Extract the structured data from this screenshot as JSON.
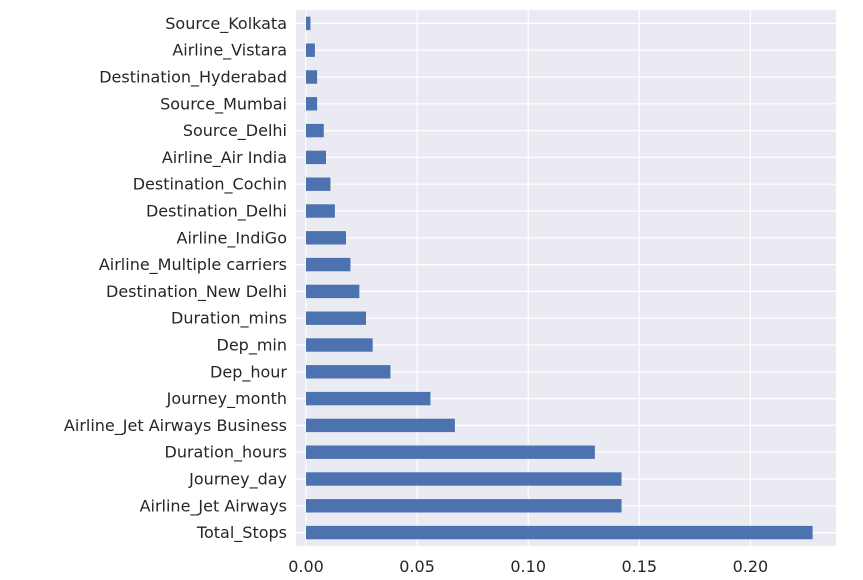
{
  "chart_data": {
    "type": "bar",
    "orientation": "horizontal",
    "categories": [
      "Total_Stops",
      "Airline_Jet Airways",
      "Journey_day",
      "Duration_hours",
      "Airline_Jet Airways Business",
      "Journey_month",
      "Dep_hour",
      "Dep_min",
      "Duration_mins",
      "Destination_New Delhi",
      "Airline_Multiple carriers",
      "Airline_IndiGo",
      "Destination_Delhi",
      "Destination_Cochin",
      "Airline_Air India",
      "Source_Delhi",
      "Source_Mumbai",
      "Destination_Hyderabad",
      "Airline_Vistara",
      "Source_Kolkata"
    ],
    "values": [
      0.228,
      0.142,
      0.142,
      0.13,
      0.067,
      0.056,
      0.038,
      0.03,
      0.027,
      0.024,
      0.02,
      0.018,
      0.013,
      0.011,
      0.009,
      0.008,
      0.005,
      0.005,
      0.004,
      0.002
    ],
    "xticks": [
      "0.00",
      "0.05",
      "0.10",
      "0.15",
      "0.20"
    ],
    "xtick_values": [
      0,
      0.05,
      0.1,
      0.15,
      0.2
    ],
    "xlim": [
      0,
      0.24
    ],
    "title": "",
    "xlabel": "",
    "ylabel": "",
    "grid": true,
    "bar_color": "#4c72b0",
    "background_color": "#eaeaf2",
    "grid_color": "#ffffff"
  }
}
